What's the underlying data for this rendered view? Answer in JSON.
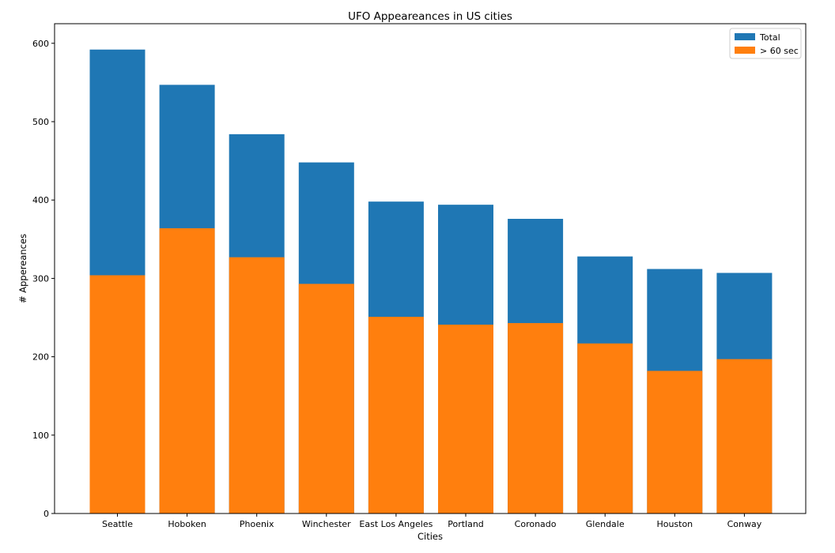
{
  "chart_data": {
    "type": "bar",
    "title": "UFO Appeareances in US cities",
    "xlabel": "Cities",
    "ylabel": "# Appereances",
    "categories": [
      "Seattle",
      "Hoboken",
      "Phoenix",
      "Winchester",
      "East Los Angeles",
      "Portland",
      "Coronado",
      "Glendale",
      "Houston",
      "Conway"
    ],
    "series": [
      {
        "name": "Total",
        "color": "#1f77b4",
        "values": [
          592,
          547,
          484,
          448,
          398,
          394,
          376,
          328,
          312,
          307
        ]
      },
      {
        "name": "> 60 sec",
        "color": "#ff7f0e",
        "values": [
          304,
          364,
          327,
          293,
          251,
          241,
          243,
          217,
          182,
          197
        ]
      }
    ],
    "ylim": [
      0,
      625
    ],
    "yticks": [
      0,
      100,
      200,
      300,
      400,
      500,
      600
    ],
    "grid": false,
    "legend_position": "top-right"
  }
}
